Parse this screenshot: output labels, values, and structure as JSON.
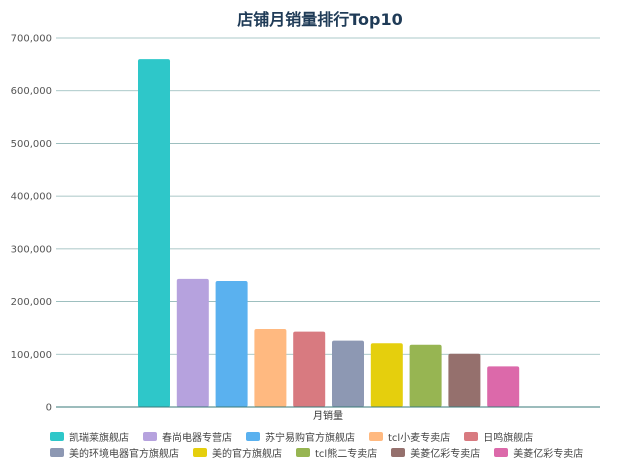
{
  "chart_data": {
    "type": "bar",
    "title": "店铺月销量排行Top10",
    "xlabel": "月销量",
    "ylabel": "",
    "ylim": [
      0,
      700000
    ],
    "yticks": [
      0,
      100000,
      200000,
      300000,
      400000,
      500000,
      600000,
      700000
    ],
    "ytick_labels": [
      "0",
      "100,000",
      "200,000",
      "300,000",
      "400,000",
      "500,000",
      "600,000",
      "700,000"
    ],
    "grid": true,
    "legend_position": "bottom",
    "series": [
      {
        "name": "凯瑞莱旗舰店",
        "value": 660000,
        "color": "#2ec7c9"
      },
      {
        "name": "春尚电器专营店",
        "value": 243000,
        "color": "#b6a2de"
      },
      {
        "name": "苏宁易购官方旗舰店",
        "value": 239000,
        "color": "#5ab1ef"
      },
      {
        "name": "tcl小麦专卖店",
        "value": 148000,
        "color": "#ffb980"
      },
      {
        "name": "日鸣旗舰店",
        "value": 143000,
        "color": "#d87a80"
      },
      {
        "name": "美的环境电器官方旗舰店",
        "value": 126000,
        "color": "#8d98b3"
      },
      {
        "name": "美的官方旗舰店",
        "value": 121000,
        "color": "#e5cf0d"
      },
      {
        "name": "tcl熊二专卖店",
        "value": 118000,
        "color": "#97b552"
      },
      {
        "name": "美菱亿彩专卖店",
        "value": 101000,
        "color": "#95706d"
      },
      {
        "name": "美菱亿彩专卖店",
        "value": 77000,
        "color": "#dc69aa"
      }
    ]
  }
}
